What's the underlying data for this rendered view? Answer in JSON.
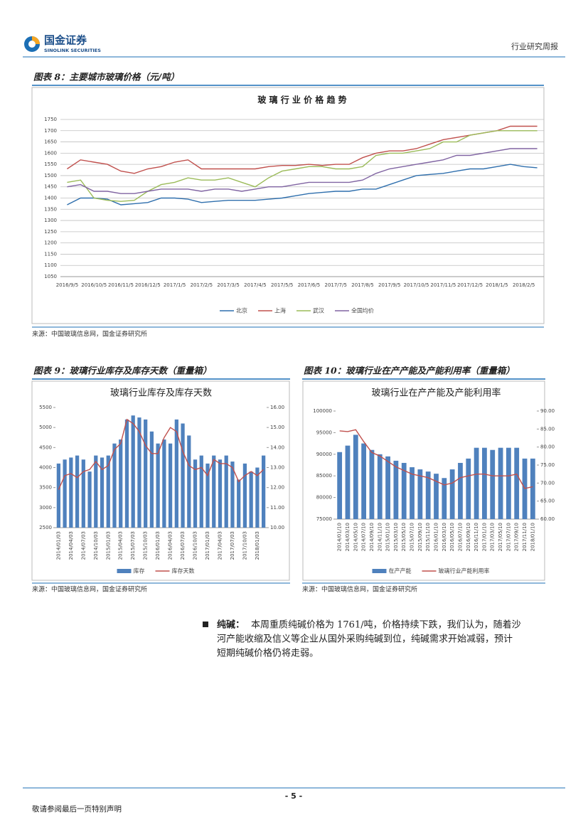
{
  "header": {
    "brand": "国金证券",
    "brand_en": "SINOLINK SECURITIES",
    "report_type": "行业研究周报"
  },
  "figures": [
    {
      "caption": "图表 8：主要城市玻璃价格（元/吨）",
      "source": "来源：中国玻璃信息网，国金证券研究所"
    },
    {
      "caption": "图表 9：玻璃行业库存及库存天数（重量箱）",
      "source": "来源：中国玻璃信息网，国金证券研究所"
    },
    {
      "caption": "图表 10：玻璃行业在产产能及产能利用率（重量箱）",
      "source": "来源：中国玻璃信息网，国金证券研究所"
    }
  ],
  "paragraph": {
    "label": "纯碱：",
    "lines": [
      "本周重质纯碱价格为 1761/吨，价格持续下跌，我们认为，随着沙",
      "河产能收缩及信义等企业从国外采购纯碱到位，纯碱需求开始减弱，预计",
      "短期纯碱价格仍将走弱。"
    ]
  },
  "footer": {
    "page": "- 5 -",
    "note": "敬请参阅最后一页特别声明"
  },
  "chart_data": [
    {
      "type": "line",
      "title": "玻 璃 行 业 价 格 趋 势",
      "categories": [
        "2016/9/5",
        null,
        "2016/10/5",
        null,
        "2016/11/5",
        null,
        "2016/12/5",
        null,
        "2017/1/5",
        null,
        "2017/2/5",
        null,
        "2017/3/5",
        null,
        "2017/4/5",
        null,
        "2017/5/5",
        null,
        "2017/6/5",
        null,
        "2017/7/5",
        null,
        "2017/8/5",
        null,
        "2017/9/5",
        null,
        "2017/10/5",
        null,
        "2017/11/5",
        null,
        "2017/12/5",
        null,
        "2018/1/5",
        null,
        "2018/2/5",
        null
      ],
      "series": [
        {
          "name": "北京",
          "color": "#2f6fad",
          "values": [
            1370,
            1400,
            1400,
            1395,
            1370,
            1375,
            1380,
            1400,
            1400,
            1395,
            1380,
            1385,
            1390,
            1390,
            1390,
            1395,
            1400,
            1410,
            1420,
            1425,
            1430,
            1430,
            1440,
            1440,
            1460,
            1480,
            1500,
            1505,
            1510,
            1520,
            1530,
            1530,
            1540,
            1550,
            1540,
            1535
          ]
        },
        {
          "name": "上海",
          "color": "#c0504d",
          "values": [
            1530,
            1570,
            1560,
            1550,
            1520,
            1510,
            1530,
            1540,
            1560,
            1570,
            1530,
            1530,
            1530,
            1530,
            1530,
            1540,
            1545,
            1545,
            1550,
            1545,
            1550,
            1550,
            1580,
            1600,
            1610,
            1610,
            1620,
            1640,
            1660,
            1670,
            1680,
            1690,
            1700,
            1720,
            1720,
            1720
          ]
        },
        {
          "name": "武汉",
          "color": "#9bbb59",
          "values": [
            1470,
            1480,
            1400,
            1390,
            1385,
            1390,
            1430,
            1460,
            1470,
            1490,
            1480,
            1480,
            1490,
            1470,
            1450,
            1490,
            1520,
            1530,
            1540,
            1540,
            1530,
            1530,
            1540,
            1590,
            1600,
            1600,
            1610,
            1620,
            1650,
            1650,
            1680,
            1690,
            1700,
            1700,
            1700,
            1700
          ]
        },
        {
          "name": "全国均价",
          "color": "#8064a2",
          "values": [
            1450,
            1460,
            1430,
            1430,
            1420,
            1420,
            1430,
            1440,
            1440,
            1440,
            1430,
            1440,
            1440,
            1430,
            1440,
            1450,
            1450,
            1460,
            1470,
            1470,
            1470,
            1470,
            1480,
            1510,
            1530,
            1540,
            1550,
            1560,
            1570,
            1590,
            1590,
            1600,
            1610,
            1620,
            1620,
            1620
          ]
        }
      ],
      "ylim": [
        1050,
        1750
      ],
      "yticks": [
        1050,
        1100,
        1150,
        1200,
        1250,
        1300,
        1350,
        1400,
        1450,
        1500,
        1550,
        1600,
        1650,
        1700,
        1750
      ],
      "grid": true,
      "legend": "bottom"
    },
    {
      "type": "bar",
      "title": "玻璃行业库存及库存天数",
      "categories": [
        "2014/01/03",
        null,
        "2014/04/03",
        null,
        "2014/07/03",
        null,
        "2014/10/03",
        null,
        "2015/01/03",
        null,
        "2015/04/03",
        null,
        "2015/07/03",
        null,
        "2015/10/03",
        null,
        "2016/01/03",
        null,
        "2016/04/03",
        null,
        "2016/07/03",
        null,
        "2016/10/03",
        null,
        "2017/01/03",
        null,
        "2017/04/03",
        null,
        "2017/07/03",
        null,
        "2017/10/03",
        null,
        "2018/01/03",
        null
      ],
      "series": [
        {
          "name": "库存",
          "color": "#4f81bd",
          "kind": "bar",
          "values": [
            4100,
            4200,
            4250,
            4300,
            4200,
            3900,
            4300,
            4250,
            4300,
            4600,
            4700,
            5200,
            5300,
            5250,
            5200,
            4900,
            4600,
            4700,
            4600,
            5200,
            5100,
            4800,
            4200,
            4300,
            4100,
            4300,
            4200,
            4300,
            4150,
            3700,
            4100,
            3900,
            4000,
            4300
          ]
        },
        {
          "name": "库存天数",
          "color": "#c0504d",
          "kind": "line",
          "axis": "y2",
          "values": [
            11.9,
            12.6,
            12.7,
            12.5,
            12.8,
            12.9,
            13.3,
            12.9,
            13.1,
            13.9,
            14.2,
            15.4,
            15.2,
            14.8,
            14.1,
            13.7,
            13.7,
            14.5,
            15.0,
            14.8,
            13.8,
            13.1,
            12.9,
            13.0,
            12.6,
            13.4,
            13.2,
            13.2,
            13.0,
            12.3,
            12.6,
            12.8,
            12.6,
            12.9
          ]
        }
      ],
      "ylim": [
        2500,
        5500
      ],
      "yticks": [
        2500,
        3000,
        3500,
        4000,
        4500,
        5000,
        5500
      ],
      "y2lim": [
        10,
        16
      ],
      "y2ticks": [
        {
          "value": 10,
          "label": "10.00"
        },
        {
          "value": 11,
          "label": "11.00"
        },
        {
          "value": 12,
          "label": "12.00"
        },
        {
          "value": 13,
          "label": "13.00"
        },
        {
          "value": 14,
          "label": "14.00"
        },
        {
          "value": 15,
          "label": "15.00"
        },
        {
          "value": 16,
          "label": "16.00"
        }
      ],
      "grid": false,
      "legend": "bottom"
    },
    {
      "type": "bar",
      "title": "玻璃行业在产产能及产能利用率",
      "categories": [
        "2014/01/10",
        "2014/03/10",
        "2014/05/10",
        "2014/07/10",
        "2014/09/10",
        "2014/11/10",
        "2015/01/10",
        "2015/03/10",
        "2015/05/10",
        "2015/07/10",
        "2015/09/10",
        "2015/11/10",
        "2016/01/10",
        "2016/03/10",
        "2016/05/10",
        "2016/07/10",
        "2016/09/10",
        "2016/11/10",
        "2017/01/10",
        "2017/03/10",
        "2017/05/10",
        "2017/07/10",
        "2017/09/10",
        "2017/11/10",
        "2018/01/10"
      ],
      "series": [
        {
          "name": "在产产能",
          "color": "#4f81bd",
          "kind": "bar",
          "values": [
            90500,
            92000,
            94500,
            92500,
            91000,
            90000,
            89500,
            88500,
            88000,
            87000,
            86500,
            86000,
            85500,
            84500,
            86500,
            88000,
            89000,
            91500,
            91500,
            91000,
            91500,
            91500,
            91500,
            89000,
            89000
          ]
        },
        {
          "name": "玻璃行业产能利用率",
          "color": "#c0504d",
          "kind": "line",
          "axis": "y2",
          "values": [
            84.5,
            84.3,
            84.8,
            81.5,
            78.5,
            77.5,
            76.0,
            74.5,
            73.5,
            72.5,
            72.0,
            71.5,
            70.5,
            69.5,
            70.0,
            71.5,
            72.0,
            72.5,
            72.5,
            72.0,
            72.0,
            72.0,
            72.5,
            68.5,
            69.0
          ]
        }
      ],
      "ylim": [
        75000,
        100000
      ],
      "yticks": [
        75000,
        80000,
        85000,
        90000,
        95000,
        100000
      ],
      "y2lim": [
        60,
        90
      ],
      "y2ticks": [
        {
          "value": 60,
          "label": "60.00"
        },
        {
          "value": 65,
          "label": "65.00"
        },
        {
          "value": 70,
          "label": "70.00"
        },
        {
          "value": 75,
          "label": "75.00"
        },
        {
          "value": 80,
          "label": "80.00"
        },
        {
          "value": 85,
          "label": "85.00"
        },
        {
          "value": 90,
          "label": "90.00"
        }
      ],
      "grid": false,
      "legend": "bottom"
    }
  ]
}
